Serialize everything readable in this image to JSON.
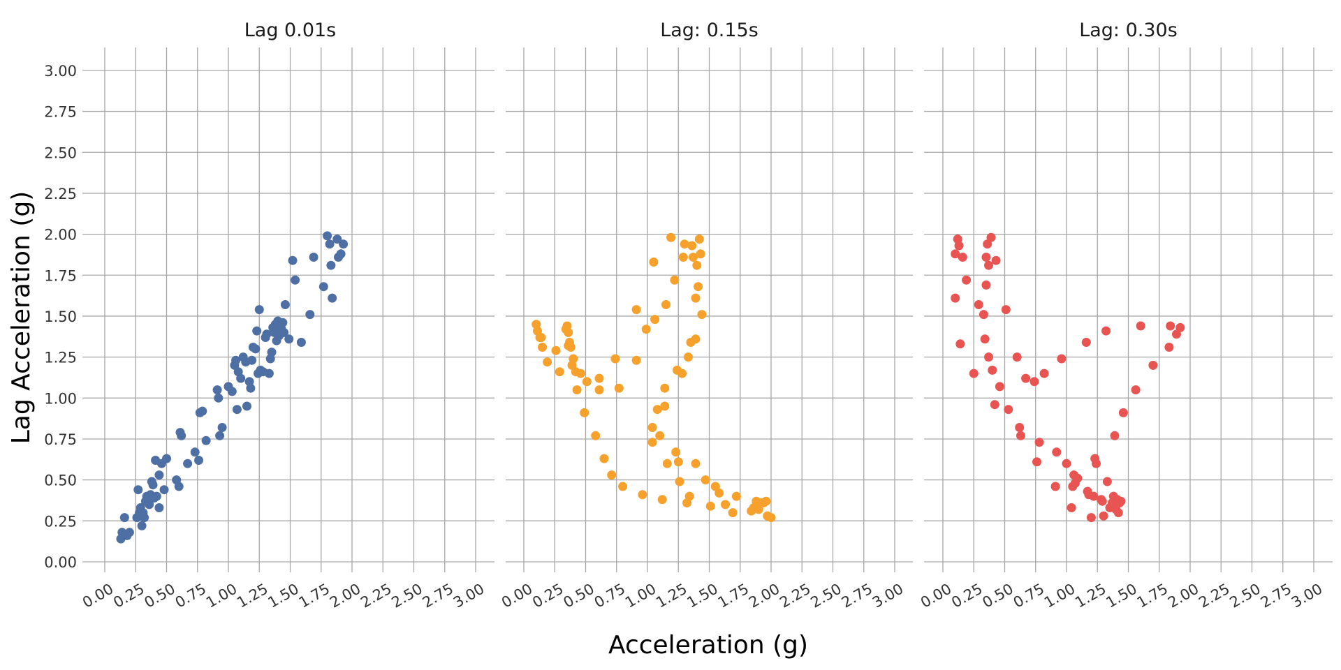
{
  "chart_data": {
    "type": "scatter",
    "xlabel": "Acceleration (g)",
    "ylabel": "Lag Acceleration (g)",
    "xlim": [
      0,
      3
    ],
    "ylim": [
      0,
      3
    ],
    "x_ticks": [
      "0.00",
      "0.25",
      "0.50",
      "0.75",
      "1.00",
      "1.25",
      "1.50",
      "1.75",
      "2.00",
      "2.25",
      "2.50",
      "2.75",
      "3.00"
    ],
    "y_ticks": [
      "0.00",
      "0.25",
      "0.50",
      "0.75",
      "1.00",
      "1.25",
      "1.50",
      "1.75",
      "2.00",
      "2.25",
      "2.50",
      "2.75",
      "3.00"
    ],
    "grid": true,
    "panels": [
      {
        "title": "Lag 0.01s",
        "color": "#4e6fa3",
        "points": [
          [
            0.13,
            0.14
          ],
          [
            0.14,
            0.18
          ],
          [
            0.16,
            0.27
          ],
          [
            0.18,
            0.16
          ],
          [
            0.2,
            0.18
          ],
          [
            0.26,
            0.27
          ],
          [
            0.27,
            0.44
          ],
          [
            0.28,
            0.3
          ],
          [
            0.29,
            0.33
          ],
          [
            0.3,
            0.22
          ],
          [
            0.31,
            0.3
          ],
          [
            0.32,
            0.27
          ],
          [
            0.33,
            0.37
          ],
          [
            0.34,
            0.4
          ],
          [
            0.35,
            0.38
          ],
          [
            0.36,
            0.35
          ],
          [
            0.37,
            0.41
          ],
          [
            0.38,
            0.49
          ],
          [
            0.39,
            0.47
          ],
          [
            0.4,
            0.39
          ],
          [
            0.41,
            0.62
          ],
          [
            0.42,
            0.4
          ],
          [
            0.44,
            0.33
          ],
          [
            0.44,
            0.53
          ],
          [
            0.46,
            0.6
          ],
          [
            0.48,
            0.44
          ],
          [
            0.5,
            0.63
          ],
          [
            0.58,
            0.5
          ],
          [
            0.6,
            0.46
          ],
          [
            0.61,
            0.79
          ],
          [
            0.62,
            0.77
          ],
          [
            0.67,
            0.6
          ],
          [
            0.73,
            0.67
          ],
          [
            0.76,
            0.62
          ],
          [
            0.77,
            0.91
          ],
          [
            0.79,
            0.92
          ],
          [
            0.82,
            0.74
          ],
          [
            0.91,
            1.05
          ],
          [
            0.92,
            1.0
          ],
          [
            0.93,
            0.77
          ],
          [
            0.95,
            0.82
          ],
          [
            1.0,
            1.07
          ],
          [
            1.03,
            1.04
          ],
          [
            1.05,
            1.2
          ],
          [
            1.06,
            1.23
          ],
          [
            1.07,
            0.93
          ],
          [
            1.08,
            1.16
          ],
          [
            1.1,
            1.12
          ],
          [
            1.12,
            1.25
          ],
          [
            1.14,
            1.22
          ],
          [
            1.15,
            0.95
          ],
          [
            1.17,
            1.1
          ],
          [
            1.18,
            1.06
          ],
          [
            1.19,
            1.23
          ],
          [
            1.2,
            1.31
          ],
          [
            1.22,
            1.3
          ],
          [
            1.23,
            1.41
          ],
          [
            1.24,
            1.15
          ],
          [
            1.25,
            1.54
          ],
          [
            1.26,
            1.17
          ],
          [
            1.28,
            1.16
          ],
          [
            1.3,
            1.37
          ],
          [
            1.31,
            1.39
          ],
          [
            1.33,
            1.15
          ],
          [
            1.34,
            1.24
          ],
          [
            1.35,
            1.28
          ],
          [
            1.36,
            1.43
          ],
          [
            1.37,
            1.4
          ],
          [
            1.38,
            1.45
          ],
          [
            1.39,
            1.35
          ],
          [
            1.4,
            1.47
          ],
          [
            1.41,
            1.38
          ],
          [
            1.42,
            1.44
          ],
          [
            1.43,
            1.42
          ],
          [
            1.44,
            1.46
          ],
          [
            1.45,
            1.4
          ],
          [
            1.46,
            1.57
          ],
          [
            1.49,
            1.36
          ],
          [
            1.52,
            1.84
          ],
          [
            1.54,
            1.72
          ],
          [
            1.59,
            1.34
          ],
          [
            1.66,
            1.51
          ],
          [
            1.69,
            1.86
          ],
          [
            1.77,
            1.68
          ],
          [
            1.8,
            1.99
          ],
          [
            1.82,
            1.94
          ],
          [
            1.83,
            1.81
          ],
          [
            1.84,
            1.61
          ],
          [
            1.88,
            1.97
          ],
          [
            1.89,
            1.86
          ],
          [
            1.91,
            1.88
          ],
          [
            1.93,
            1.94
          ]
        ]
      },
      {
        "title": "Lag: 0.15s",
        "color": "#f5a12b",
        "points": [
          [
            0.1,
            1.45
          ],
          [
            0.11,
            1.41
          ],
          [
            0.13,
            1.37
          ],
          [
            0.14,
            1.37
          ],
          [
            0.15,
            1.31
          ],
          [
            0.19,
            1.22
          ],
          [
            0.26,
            1.29
          ],
          [
            0.29,
            1.16
          ],
          [
            0.34,
            1.42
          ],
          [
            0.35,
            1.44
          ],
          [
            0.36,
            1.32
          ],
          [
            0.36,
            1.4
          ],
          [
            0.37,
            1.34
          ],
          [
            0.38,
            1.31
          ],
          [
            0.39,
            1.2
          ],
          [
            0.4,
            1.24
          ],
          [
            0.42,
            1.16
          ],
          [
            0.43,
            1.05
          ],
          [
            0.46,
            1.15
          ],
          [
            0.49,
            0.91
          ],
          [
            0.51,
            1.1
          ],
          [
            0.58,
            0.77
          ],
          [
            0.61,
            1.12
          ],
          [
            0.61,
            1.05
          ],
          [
            0.65,
            0.63
          ],
          [
            0.71,
            0.53
          ],
          [
            0.74,
            1.24
          ],
          [
            0.77,
            1.06
          ],
          [
            0.8,
            0.46
          ],
          [
            0.91,
            1.54
          ],
          [
            0.91,
            1.23
          ],
          [
            0.96,
            0.41
          ],
          [
            0.99,
            1.42
          ],
          [
            1.04,
            0.82
          ],
          [
            1.04,
            0.73
          ],
          [
            1.05,
            1.83
          ],
          [
            1.06,
            1.48
          ],
          [
            1.08,
            0.93
          ],
          [
            1.1,
            0.77
          ],
          [
            1.12,
            0.38
          ],
          [
            1.14,
            1.06
          ],
          [
            1.14,
            0.95
          ],
          [
            1.15,
            1.57
          ],
          [
            1.16,
            0.6
          ],
          [
            1.19,
            1.98
          ],
          [
            1.22,
            1.72
          ],
          [
            1.23,
            0.67
          ],
          [
            1.24,
            1.17
          ],
          [
            1.25,
            0.61
          ],
          [
            1.26,
            0.49
          ],
          [
            1.28,
            1.15
          ],
          [
            1.29,
            1.86
          ],
          [
            1.3,
            1.94
          ],
          [
            1.32,
            0.36
          ],
          [
            1.33,
            1.25
          ],
          [
            1.34,
            0.4
          ],
          [
            1.35,
            1.34
          ],
          [
            1.36,
            1.93
          ],
          [
            1.37,
            1.86
          ],
          [
            1.39,
            1.61
          ],
          [
            1.39,
            1.36
          ],
          [
            1.4,
            1.81
          ],
          [
            1.41,
            1.68
          ],
          [
            1.42,
            1.97
          ],
          [
            1.43,
            1.88
          ],
          [
            1.44,
            1.51
          ],
          [
            1.39,
            0.6
          ],
          [
            1.47,
            0.5
          ],
          [
            1.51,
            0.34
          ],
          [
            1.55,
            0.46
          ],
          [
            1.58,
            0.42
          ],
          [
            1.63,
            0.35
          ],
          [
            1.69,
            0.3
          ],
          [
            1.72,
            0.4
          ],
          [
            1.84,
            0.31
          ],
          [
            1.86,
            0.33
          ],
          [
            1.88,
            0.37
          ],
          [
            1.9,
            0.32
          ],
          [
            1.92,
            0.36
          ],
          [
            1.94,
            0.36
          ],
          [
            1.96,
            0.37
          ],
          [
            1.97,
            0.28
          ],
          [
            2.0,
            0.27
          ]
        ]
      },
      {
        "title": "Lag: 0.30s",
        "color": "#e85452",
        "points": [
          [
            0.1,
            1.61
          ],
          [
            0.1,
            1.88
          ],
          [
            0.12,
            1.97
          ],
          [
            0.13,
            1.93
          ],
          [
            0.14,
            1.33
          ],
          [
            0.16,
            1.86
          ],
          [
            0.19,
            1.72
          ],
          [
            0.25,
            1.15
          ],
          [
            0.29,
            1.57
          ],
          [
            0.33,
            1.51
          ],
          [
            0.34,
            1.36
          ],
          [
            0.35,
            1.69
          ],
          [
            0.35,
            1.86
          ],
          [
            0.36,
            1.94
          ],
          [
            0.37,
            1.81
          ],
          [
            0.37,
            1.25
          ],
          [
            0.39,
            1.98
          ],
          [
            0.4,
            1.17
          ],
          [
            0.42,
            0.96
          ],
          [
            0.43,
            1.84
          ],
          [
            0.46,
            1.07
          ],
          [
            0.51,
            1.54
          ],
          [
            0.53,
            0.93
          ],
          [
            0.6,
            1.25
          ],
          [
            0.62,
            0.82
          ],
          [
            0.63,
            0.77
          ],
          [
            0.67,
            1.12
          ],
          [
            0.74,
            1.1
          ],
          [
            0.76,
            0.61
          ],
          [
            0.78,
            0.73
          ],
          [
            0.82,
            1.15
          ],
          [
            0.91,
            0.46
          ],
          [
            0.92,
            0.67
          ],
          [
            0.96,
            1.24
          ],
          [
            1.0,
            0.6
          ],
          [
            1.04,
            0.33
          ],
          [
            1.05,
            0.46
          ],
          [
            1.06,
            0.53
          ],
          [
            1.07,
            0.48
          ],
          [
            1.09,
            0.51
          ],
          [
            1.16,
            1.34
          ],
          [
            1.17,
            0.43
          ],
          [
            1.18,
            0.41
          ],
          [
            1.2,
            0.27
          ],
          [
            1.22,
            0.4
          ],
          [
            1.23,
            0.63
          ],
          [
            1.24,
            0.6
          ],
          [
            1.28,
            0.38
          ],
          [
            1.29,
            0.37
          ],
          [
            1.3,
            0.28
          ],
          [
            1.32,
            1.41
          ],
          [
            1.33,
            0.49
          ],
          [
            1.35,
            0.33
          ],
          [
            1.37,
            0.36
          ],
          [
            1.38,
            0.4
          ],
          [
            1.39,
            0.35
          ],
          [
            1.4,
            0.32
          ],
          [
            1.41,
            0.38
          ],
          [
            1.42,
            0.3
          ],
          [
            1.43,
            0.36
          ],
          [
            1.44,
            0.37
          ],
          [
            1.39,
            0.77
          ],
          [
            1.46,
            0.91
          ],
          [
            1.56,
            1.05
          ],
          [
            1.6,
            1.44
          ],
          [
            1.7,
            1.2
          ],
          [
            1.83,
            1.31
          ],
          [
            1.84,
            1.44
          ],
          [
            1.89,
            1.39
          ],
          [
            1.92,
            1.43
          ]
        ]
      }
    ]
  }
}
